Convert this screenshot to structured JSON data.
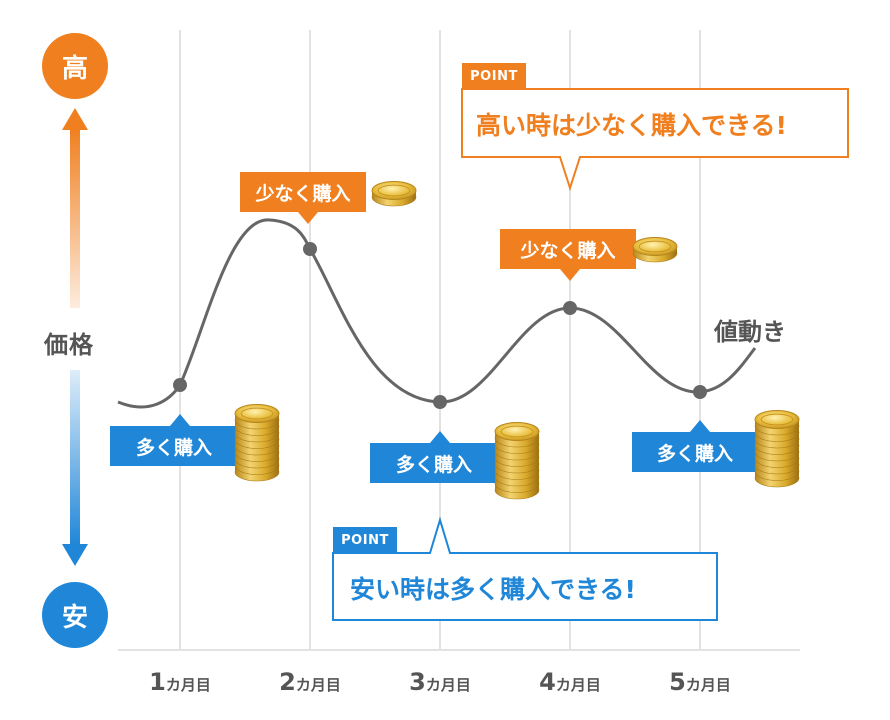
{
  "axis": {
    "high": "高",
    "low": "安",
    "name": "価格"
  },
  "months": [
    {
      "num": "1",
      "unit": "カ月目"
    },
    {
      "num": "2",
      "unit": "カ月目"
    },
    {
      "num": "3",
      "unit": "カ月目"
    },
    {
      "num": "4",
      "unit": "カ月目"
    },
    {
      "num": "5",
      "unit": "カ月目"
    }
  ],
  "curve_label": "値動き",
  "labels": {
    "buy_more": "多く購入",
    "buy_less": "少なく購入"
  },
  "points": {
    "tag": "POINT",
    "high_text": "高い時は少なく購入できる!",
    "low_text": "安い時は多く購入できる!"
  },
  "colors": {
    "orange": "#f07f1f",
    "blue": "#1f86d8",
    "curve": "#666666",
    "grid": "#e2e2e2",
    "coin_gold": "#d9a92a"
  },
  "chart_data": {
    "type": "line",
    "categories": [
      "1カ月目",
      "2カ月目",
      "3カ月目",
      "4カ月目",
      "5カ月目"
    ],
    "series": [
      {
        "name": "値動き",
        "values": [
          385,
          249,
          402,
          308,
          392
        ],
        "purchase": [
          "多く購入",
          "少なく購入",
          "多く購入",
          "少なく購入",
          "多く購入"
        ]
      }
    ]
  }
}
